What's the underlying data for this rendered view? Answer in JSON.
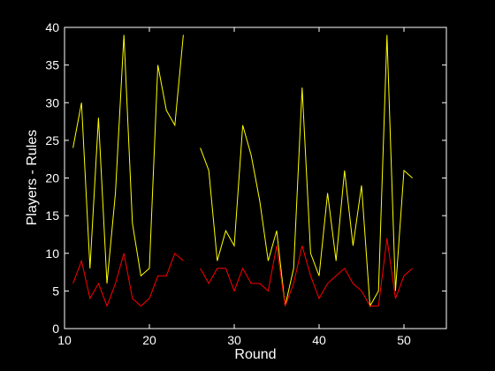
{
  "chart_data": {
    "type": "line",
    "title": "",
    "xlabel": "Round",
    "ylabel": "Players - Rules",
    "xlim": [
      10,
      55
    ],
    "ylim": [
      0,
      40
    ],
    "xticks": [
      10,
      20,
      30,
      40,
      50
    ],
    "yticks": [
      0,
      5,
      10,
      15,
      20,
      25,
      30,
      35,
      40
    ],
    "grid": false,
    "background": "#000000",
    "axis_color": "#ffffff",
    "series": [
      {
        "color": "#ffff00",
        "points": [
          [
            11,
            24
          ],
          [
            12,
            30
          ],
          [
            13,
            8
          ],
          [
            14,
            28
          ],
          [
            15,
            6
          ],
          [
            16,
            18
          ],
          [
            17,
            39
          ],
          [
            18,
            14
          ],
          [
            19,
            7
          ],
          [
            20,
            8
          ],
          [
            21,
            35
          ],
          [
            22,
            29
          ],
          [
            23,
            27
          ],
          [
            24,
            39
          ],
          [
            26,
            24
          ],
          [
            27,
            21
          ],
          [
            28,
            9
          ],
          [
            29,
            13
          ],
          [
            30,
            11
          ],
          [
            31,
            27
          ],
          [
            32,
            23
          ],
          [
            33,
            17
          ],
          [
            34,
            9
          ],
          [
            35,
            13
          ],
          [
            36,
            3
          ],
          [
            37,
            8
          ],
          [
            38,
            32
          ],
          [
            39,
            10
          ],
          [
            40,
            7
          ],
          [
            41,
            18
          ],
          [
            42,
            9
          ],
          [
            43,
            21
          ],
          [
            44,
            11
          ],
          [
            45,
            19
          ],
          [
            46,
            3
          ],
          [
            47,
            5
          ],
          [
            48,
            39
          ],
          [
            49,
            5
          ],
          [
            50,
            21
          ],
          [
            51,
            20
          ]
        ]
      },
      {
        "color": "#ff0000",
        "points": [
          [
            11,
            6
          ],
          [
            12,
            9
          ],
          [
            13,
            4
          ],
          [
            14,
            6
          ],
          [
            15,
            3
          ],
          [
            16,
            6
          ],
          [
            17,
            10
          ],
          [
            18,
            4
          ],
          [
            19,
            3
          ],
          [
            20,
            4
          ],
          [
            21,
            7
          ],
          [
            22,
            7
          ],
          [
            23,
            10
          ],
          [
            24,
            9
          ],
          [
            26,
            8
          ],
          [
            27,
            6
          ],
          [
            28,
            8
          ],
          [
            29,
            8
          ],
          [
            30,
            5
          ],
          [
            31,
            8
          ],
          [
            32,
            6
          ],
          [
            33,
            6
          ],
          [
            34,
            5
          ],
          [
            35,
            11
          ],
          [
            36,
            3
          ],
          [
            37,
            6
          ],
          [
            38,
            11
          ],
          [
            39,
            7
          ],
          [
            40,
            4
          ],
          [
            41,
            6
          ],
          [
            42,
            7
          ],
          [
            43,
            8
          ],
          [
            44,
            6
          ],
          [
            45,
            5
          ],
          [
            46,
            3
          ],
          [
            47,
            3
          ],
          [
            48,
            12
          ],
          [
            49,
            4
          ],
          [
            50,
            7
          ],
          [
            51,
            8
          ]
        ]
      }
    ]
  }
}
